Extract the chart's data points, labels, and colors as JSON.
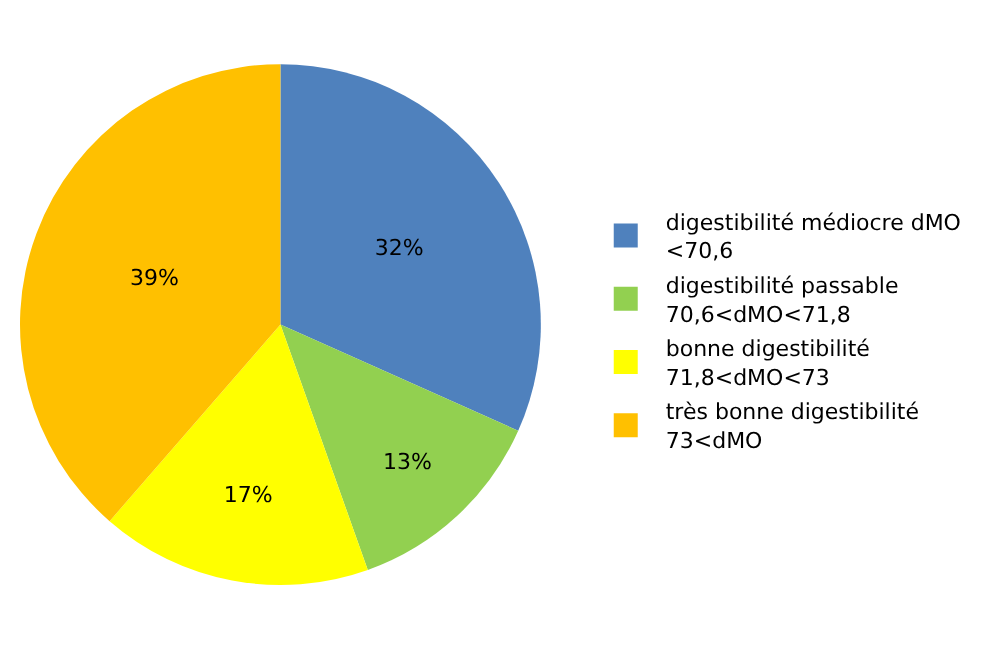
{
  "chart_data": {
    "type": "pie",
    "categories": [
      "digestibilité médiocre dMO <70,6",
      "digestibilité passable 70,6<dMO<71,8",
      "bonne digestibilité 71,8<dMO<73",
      "très bonne digestibilité 73<dMO"
    ],
    "values": [
      32,
      13,
      17,
      39
    ],
    "colors": [
      "#4f81bd",
      "#92d050",
      "#ffff00",
      "#ffc000"
    ],
    "value_labels": [
      "32%",
      "13%",
      "17%",
      "39%"
    ],
    "legend": "right"
  }
}
